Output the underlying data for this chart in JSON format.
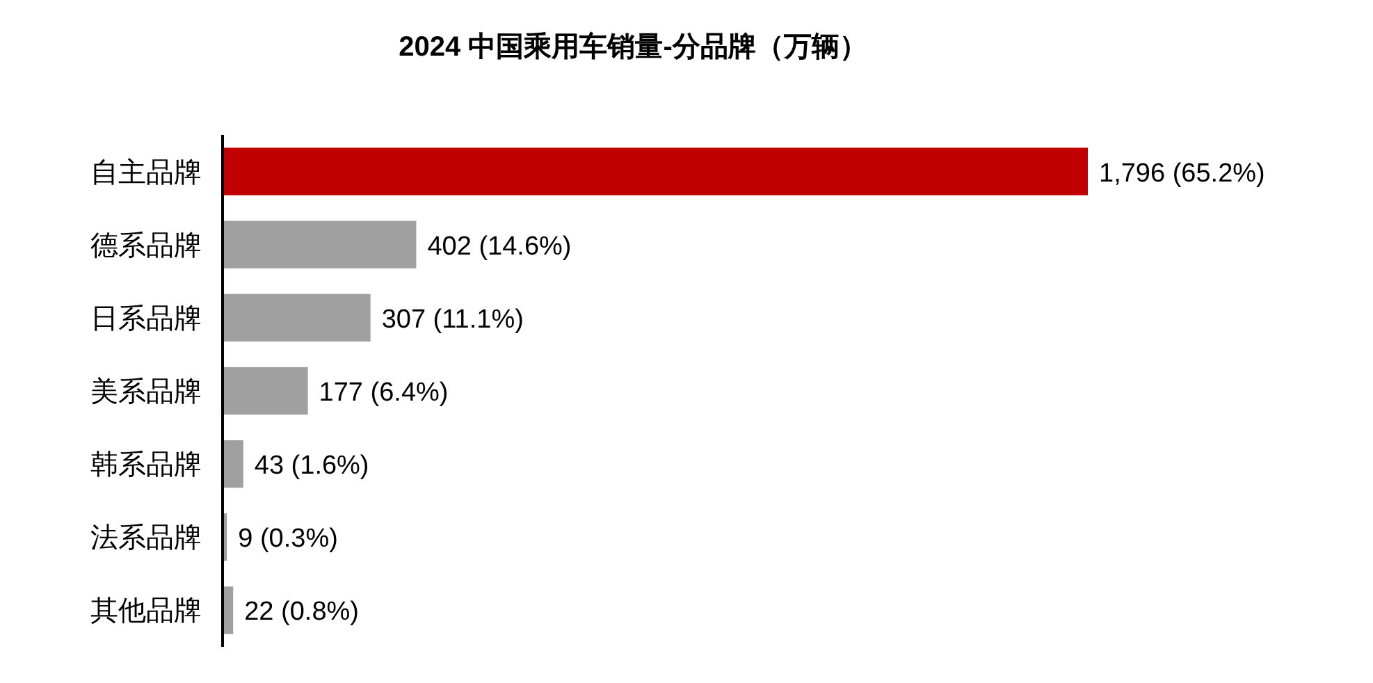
{
  "chart_data": {
    "type": "bar",
    "orientation": "horizontal",
    "title": "2024 中国乘用车销量-分品牌（万辆）",
    "categories": [
      "自主品牌",
      "德系品牌",
      "日系品牌",
      "美系品牌",
      "韩系品牌",
      "法系品牌",
      "其他品牌"
    ],
    "values": [
      1796,
      402,
      307,
      177,
      43,
      9,
      22
    ],
    "colors": [
      "#c00000",
      "#a0a0a0",
      "#a0a0a0",
      "#a0a0a0",
      "#a0a0a0",
      "#a0a0a0",
      "#a0a0a0"
    ],
    "value_labels": [
      "1,796 (65.2%)",
      "402 (14.6%)",
      "307 (11.1%)",
      "177 (6.4%)",
      "43 (1.6%)",
      "9 (0.3%)",
      "22 (0.8%)"
    ]
  }
}
